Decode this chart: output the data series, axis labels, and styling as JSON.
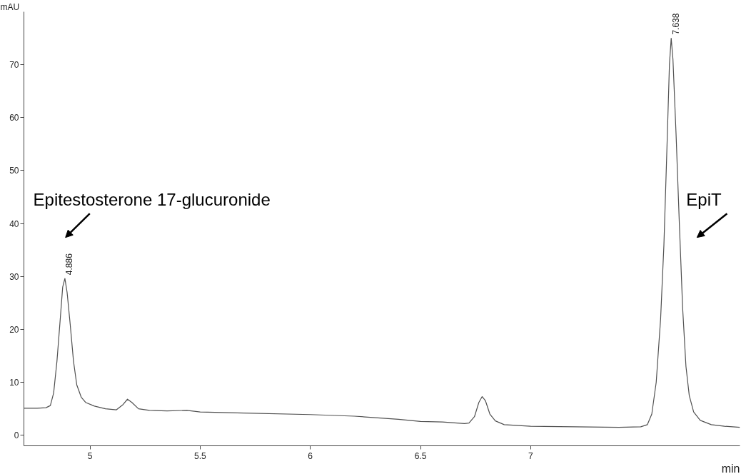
{
  "chart_data": {
    "type": "line",
    "xlabel": "min",
    "ylabel": "mAU",
    "x": [
      4.7,
      4.76,
      4.8,
      4.82,
      4.835,
      4.85,
      4.865,
      4.876,
      4.886,
      4.896,
      4.91,
      4.925,
      4.94,
      4.96,
      4.98,
      5.02,
      5.07,
      5.12,
      5.15,
      5.17,
      5.19,
      5.22,
      5.27,
      5.35,
      5.44,
      5.5,
      5.7,
      6.0,
      6.2,
      6.4,
      6.5,
      6.6,
      6.7,
      6.72,
      6.745,
      6.765,
      6.78,
      6.795,
      6.815,
      6.84,
      6.88,
      7.0,
      7.2,
      7.4,
      7.5,
      7.53,
      7.55,
      7.57,
      7.59,
      7.605,
      7.62,
      7.63,
      7.638,
      7.646,
      7.66,
      7.675,
      7.69,
      7.705,
      7.72,
      7.74,
      7.77,
      7.82,
      7.88,
      7.95
    ],
    "series": [
      {
        "color": "#505050",
        "values": [
          5.1,
          5.1,
          5.2,
          5.6,
          8,
          14,
          22,
          28,
          29.6,
          27,
          21,
          14,
          9.5,
          7.2,
          6.2,
          5.5,
          5.0,
          4.8,
          5.8,
          6.8,
          6.2,
          5.0,
          4.7,
          4.6,
          4.7,
          4.4,
          4.2,
          3.9,
          3.6,
          3.0,
          2.6,
          2.5,
          2.2,
          2.3,
          3.5,
          6.2,
          7.3,
          6.5,
          4.0,
          2.7,
          2.0,
          1.7,
          1.6,
          1.5,
          1.6,
          2.0,
          4,
          10,
          22,
          36,
          56,
          70,
          75,
          71,
          57,
          40,
          24,
          13,
          7.5,
          4.4,
          2.8,
          2.0,
          1.7,
          1.5
        ],
        "name": null
      }
    ],
    "annotations": [
      "Epitestosterone 17-glucuronide",
      "EpiT",
      {
        "text": "4.886",
        "x": 4.886,
        "y": 29.6
      },
      {
        "text": "7.638",
        "x": 7.638,
        "y": 75
      }
    ],
    "xlim": [
      4.7,
      7.95
    ],
    "ylim": [
      -2,
      80
    ],
    "xticks": [
      5,
      5.5,
      6,
      6.5,
      7
    ],
    "yticks": [
      0,
      10,
      20,
      30,
      40,
      50,
      60,
      70
    ],
    "grid": false,
    "line_style": "solid"
  }
}
